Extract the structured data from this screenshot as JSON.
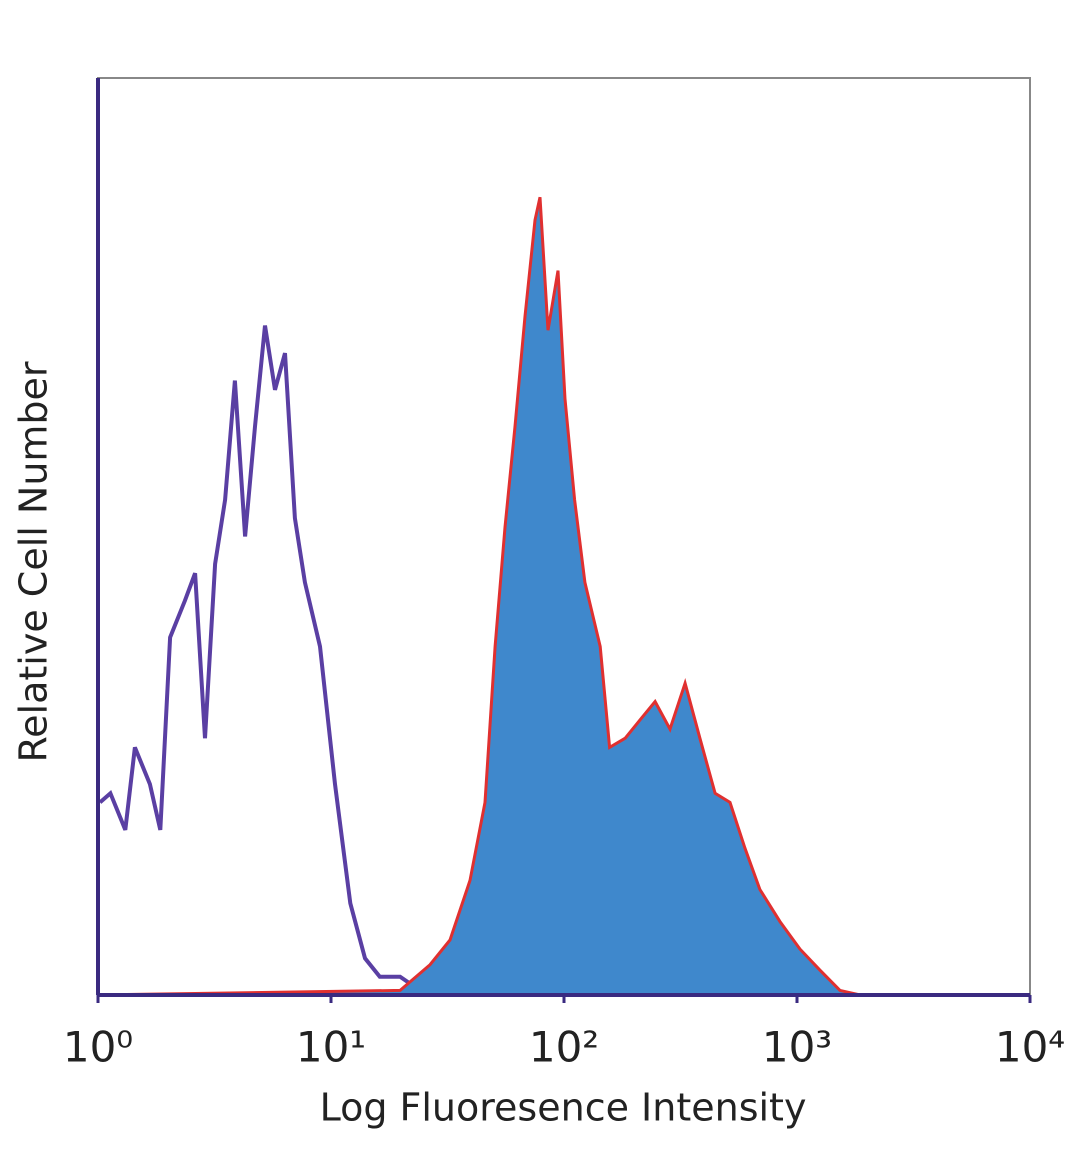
{
  "chart_data": {
    "type": "histogram-overlay",
    "xlabel": "Log Fluoresence Intensity",
    "ylabel": "Relative Cell Number",
    "xscale": "log",
    "xlim": [
      1,
      10000
    ],
    "xticks": [
      {
        "value": 1,
        "label": "10⁰"
      },
      {
        "value": 10,
        "label": "10¹"
      },
      {
        "value": 100,
        "label": "10²"
      },
      {
        "value": 1000,
        "label": "10³"
      },
      {
        "value": 10000,
        "label": "10⁴"
      }
    ],
    "ylim": [
      0,
      100
    ],
    "series": [
      {
        "color": "#5a3fa3",
        "filled": false,
        "x": [
          1.02,
          1.13,
          1.31,
          1.44,
          1.67,
          1.85,
          2.04,
          2.36,
          2.61,
          2.88,
          3.18,
          3.51,
          3.87,
          4.28,
          4.72,
          5.21,
          5.75,
          6.35,
          7.0,
          7.73,
          8.97,
          10.4,
          12.1,
          14.0,
          16.2,
          19.8,
          24.1,
          29.4,
          10000
        ],
        "values": [
          21,
          22,
          18,
          27,
          23,
          18,
          39,
          43,
          46,
          28,
          47,
          54,
          67,
          50,
          62,
          73,
          66,
          70,
          52,
          45,
          38,
          23,
          10,
          4,
          2,
          2,
          0.5,
          0,
          0
        ]
      },
      {
        "color": "#3f88cc",
        "line_color": "#e03030",
        "filled": true,
        "x": [
          1,
          19.8,
          26.6,
          32.4,
          39.5,
          45.8,
          50.6,
          55.8,
          61.6,
          68.0,
          75.1,
          78.9,
          85.4,
          94.2,
          101,
          111,
          123,
          143,
          157,
          183,
          212,
          246,
          285,
          331,
          383,
          445,
          516,
          598,
          693,
          845,
          1030,
          1255,
          1530,
          1865,
          10000
        ],
        "values": [
          0,
          0.5,
          3.3,
          6,
          12.5,
          21,
          38,
          51,
          62,
          74,
          84.5,
          87,
          72.5,
          79,
          65,
          54,
          45,
          38,
          27,
          28,
          30,
          32,
          29,
          34,
          28,
          22,
          21,
          16,
          11.5,
          8,
          5,
          2.7,
          0.5,
          0,
          0
        ]
      }
    ]
  }
}
